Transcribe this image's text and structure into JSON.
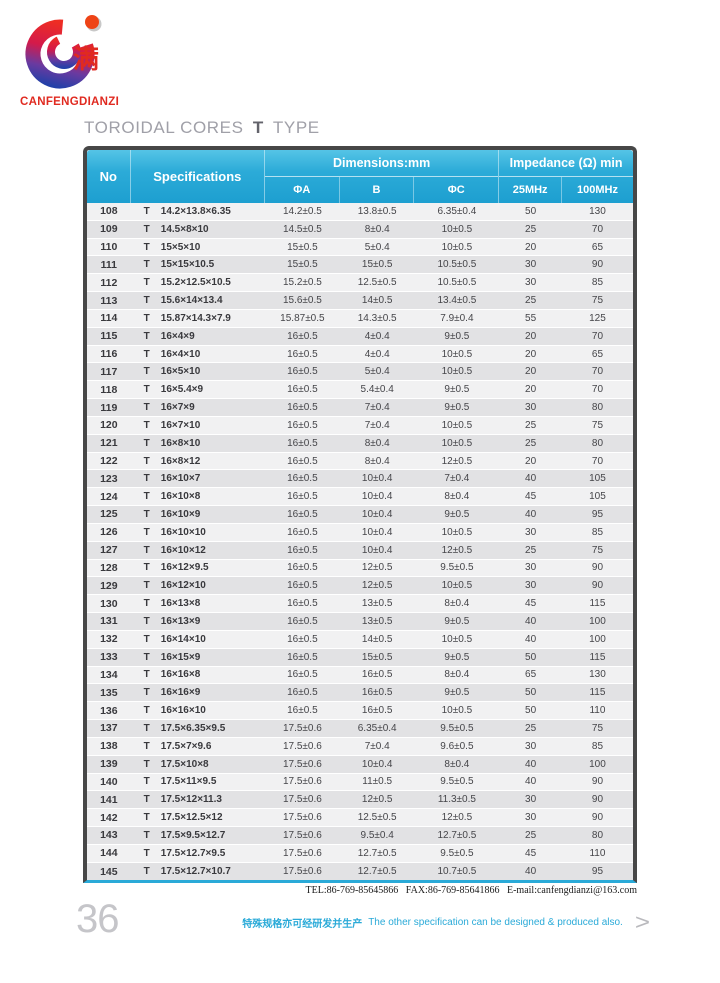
{
  "logo": {
    "brand": "CANFENGDIANZI",
    "symbol_char": "满"
  },
  "header": {
    "title_prefix": "TOROIDAL CORES",
    "title_type_letter": "T",
    "title_suffix": "TYPE"
  },
  "footer": {
    "contact": "TEL:86-769-85645866   FAX:86-769-85641866   E-mail:canfengdianzi@163.com",
    "page_number": "36",
    "promo_cn": "特殊规格亦可经研发并生产",
    "promo_en": "The other specification can be designed & produced also.",
    "chevron": ">"
  },
  "colors": {
    "accent_cyan": "#2aaad8",
    "brand_red": "#e02a20",
    "frame_dark": "#474747",
    "row_light": "#f1f1f2",
    "row_dark": "#e2e2e4"
  },
  "table": {
    "headers": {
      "no": "No",
      "specifications": "Specifications",
      "dimensions_group": "Dimensions:mm",
      "impedance_group": "Impedance (Ω) min",
      "phi_a": "ΦA",
      "b": "B",
      "phi_c": "ΦC",
      "f25": "25MHz",
      "f100": "100MHz"
    },
    "rows": [
      {
        "no": "108",
        "type": "T",
        "dims": "14.2×13.8×6.35",
        "phi_a": "14.2±0.5",
        "b": "13.8±0.5",
        "phi_c": "6.35±0.4",
        "f25": "50",
        "f100": "130"
      },
      {
        "no": "109",
        "type": "T",
        "dims": "14.5×8×10",
        "phi_a": "14.5±0.5",
        "b": "8±0.4",
        "phi_c": "10±0.5",
        "f25": "25",
        "f100": "70"
      },
      {
        "no": "110",
        "type": "T",
        "dims": "15×5×10",
        "phi_a": "15±0.5",
        "b": "5±0.4",
        "phi_c": "10±0.5",
        "f25": "20",
        "f100": "65"
      },
      {
        "no": "111",
        "type": "T",
        "dims": "15×15×10.5",
        "phi_a": "15±0.5",
        "b": "15±0.5",
        "phi_c": "10.5±0.5",
        "f25": "30",
        "f100": "90"
      },
      {
        "no": "112",
        "type": "T",
        "dims": "15.2×12.5×10.5",
        "phi_a": "15.2±0.5",
        "b": "12.5±0.5",
        "phi_c": "10.5±0.5",
        "f25": "30",
        "f100": "85"
      },
      {
        "no": "113",
        "type": "T",
        "dims": "15.6×14×13.4",
        "phi_a": "15.6±0.5",
        "b": "14±0.5",
        "phi_c": "13.4±0.5",
        "f25": "25",
        "f100": "75"
      },
      {
        "no": "114",
        "type": "T",
        "dims": "15.87×14.3×7.9",
        "phi_a": "15.87±0.5",
        "b": "14.3±0.5",
        "phi_c": "7.9±0.4",
        "f25": "55",
        "f100": "125"
      },
      {
        "no": "115",
        "type": "T",
        "dims": "16×4×9",
        "phi_a": "16±0.5",
        "b": "4±0.4",
        "phi_c": "9±0.5",
        "f25": "20",
        "f100": "70"
      },
      {
        "no": "116",
        "type": "T",
        "dims": "16×4×10",
        "phi_a": "16±0.5",
        "b": "4±0.4",
        "phi_c": "10±0.5",
        "f25": "20",
        "f100": "65"
      },
      {
        "no": "117",
        "type": "T",
        "dims": "16×5×10",
        "phi_a": "16±0.5",
        "b": "5±0.4",
        "phi_c": "10±0.5",
        "f25": "20",
        "f100": "70"
      },
      {
        "no": "118",
        "type": "T",
        "dims": "16×5.4×9",
        "phi_a": "16±0.5",
        "b": "5.4±0.4",
        "phi_c": "9±0.5",
        "f25": "20",
        "f100": "70"
      },
      {
        "no": "119",
        "type": "T",
        "dims": "16×7×9",
        "phi_a": "16±0.5",
        "b": "7±0.4",
        "phi_c": "9±0.5",
        "f25": "30",
        "f100": "80"
      },
      {
        "no": "120",
        "type": "T",
        "dims": "16×7×10",
        "phi_a": "16±0.5",
        "b": "7±0.4",
        "phi_c": "10±0.5",
        "f25": "25",
        "f100": "75"
      },
      {
        "no": "121",
        "type": "T",
        "dims": "16×8×10",
        "phi_a": "16±0.5",
        "b": "8±0.4",
        "phi_c": "10±0.5",
        "f25": "25",
        "f100": "80"
      },
      {
        "no": "122",
        "type": "T",
        "dims": "16×8×12",
        "phi_a": "16±0.5",
        "b": "8±0.4",
        "phi_c": "12±0.5",
        "f25": "20",
        "f100": "70"
      },
      {
        "no": "123",
        "type": "T",
        "dims": "16×10×7",
        "phi_a": "16±0.5",
        "b": "10±0.4",
        "phi_c": "7±0.4",
        "f25": "40",
        "f100": "105"
      },
      {
        "no": "124",
        "type": "T",
        "dims": "16×10×8",
        "phi_a": "16±0.5",
        "b": "10±0.4",
        "phi_c": "8±0.4",
        "f25": "45",
        "f100": "105"
      },
      {
        "no": "125",
        "type": "T",
        "dims": "16×10×9",
        "phi_a": "16±0.5",
        "b": "10±0.4",
        "phi_c": "9±0.5",
        "f25": "40",
        "f100": "95"
      },
      {
        "no": "126",
        "type": "T",
        "dims": "16×10×10",
        "phi_a": "16±0.5",
        "b": "10±0.4",
        "phi_c": "10±0.5",
        "f25": "30",
        "f100": "85"
      },
      {
        "no": "127",
        "type": "T",
        "dims": "16×10×12",
        "phi_a": "16±0.5",
        "b": "10±0.4",
        "phi_c": "12±0.5",
        "f25": "25",
        "f100": "75"
      },
      {
        "no": "128",
        "type": "T",
        "dims": "16×12×9.5",
        "phi_a": "16±0.5",
        "b": "12±0.5",
        "phi_c": "9.5±0.5",
        "f25": "30",
        "f100": "90"
      },
      {
        "no": "129",
        "type": "T",
        "dims": "16×12×10",
        "phi_a": "16±0.5",
        "b": "12±0.5",
        "phi_c": "10±0.5",
        "f25": "30",
        "f100": "90"
      },
      {
        "no": "130",
        "type": "T",
        "dims": "16×13×8",
        "phi_a": "16±0.5",
        "b": "13±0.5",
        "phi_c": "8±0.4",
        "f25": "45",
        "f100": "115"
      },
      {
        "no": "131",
        "type": "T",
        "dims": "16×13×9",
        "phi_a": "16±0.5",
        "b": "13±0.5",
        "phi_c": "9±0.5",
        "f25": "40",
        "f100": "100"
      },
      {
        "no": "132",
        "type": "T",
        "dims": "16×14×10",
        "phi_a": "16±0.5",
        "b": "14±0.5",
        "phi_c": "10±0.5",
        "f25": "40",
        "f100": "100"
      },
      {
        "no": "133",
        "type": "T",
        "dims": "16×15×9",
        "phi_a": "16±0.5",
        "b": "15±0.5",
        "phi_c": "9±0.5",
        "f25": "50",
        "f100": "115"
      },
      {
        "no": "134",
        "type": "T",
        "dims": "16×16×8",
        "phi_a": "16±0.5",
        "b": "16±0.5",
        "phi_c": "8±0.4",
        "f25": "65",
        "f100": "130"
      },
      {
        "no": "135",
        "type": "T",
        "dims": "16×16×9",
        "phi_a": "16±0.5",
        "b": "16±0.5",
        "phi_c": "9±0.5",
        "f25": "50",
        "f100": "115"
      },
      {
        "no": "136",
        "type": "T",
        "dims": "16×16×10",
        "phi_a": "16±0.5",
        "b": "16±0.5",
        "phi_c": "10±0.5",
        "f25": "50",
        "f100": "110"
      },
      {
        "no": "137",
        "type": "T",
        "dims": "17.5×6.35×9.5",
        "phi_a": "17.5±0.6",
        "b": "6.35±0.4",
        "phi_c": "9.5±0.5",
        "f25": "25",
        "f100": "75"
      },
      {
        "no": "138",
        "type": "T",
        "dims": "17.5×7×9.6",
        "phi_a": "17.5±0.6",
        "b": "7±0.4",
        "phi_c": "9.6±0.5",
        "f25": "30",
        "f100": "85"
      },
      {
        "no": "139",
        "type": "T",
        "dims": "17.5×10×8",
        "phi_a": "17.5±0.6",
        "b": "10±0.4",
        "phi_c": "8±0.4",
        "f25": "40",
        "f100": "100"
      },
      {
        "no": "140",
        "type": "T",
        "dims": "17.5×11×9.5",
        "phi_a": "17.5±0.6",
        "b": "11±0.5",
        "phi_c": "9.5±0.5",
        "f25": "40",
        "f100": "90"
      },
      {
        "no": "141",
        "type": "T",
        "dims": "17.5×12×11.3",
        "phi_a": "17.5±0.6",
        "b": "12±0.5",
        "phi_c": "11.3±0.5",
        "f25": "30",
        "f100": "90"
      },
      {
        "no": "142",
        "type": "T",
        "dims": "17.5×12.5×12",
        "phi_a": "17.5±0.6",
        "b": "12.5±0.5",
        "phi_c": "12±0.5",
        "f25": "30",
        "f100": "90"
      },
      {
        "no": "143",
        "type": "T",
        "dims": "17.5×9.5×12.7",
        "phi_a": "17.5±0.6",
        "b": "9.5±0.4",
        "phi_c": "12.7±0.5",
        "f25": "25",
        "f100": "80"
      },
      {
        "no": "144",
        "type": "T",
        "dims": "17.5×12.7×9.5",
        "phi_a": "17.5±0.6",
        "b": "12.7±0.5",
        "phi_c": "9.5±0.5",
        "f25": "45",
        "f100": "110"
      },
      {
        "no": "145",
        "type": "T",
        "dims": "17.5×12.7×10.7",
        "phi_a": "17.5±0.6",
        "b": "12.7±0.5",
        "phi_c": "10.7±0.5",
        "f25": "40",
        "f100": "95"
      }
    ]
  }
}
